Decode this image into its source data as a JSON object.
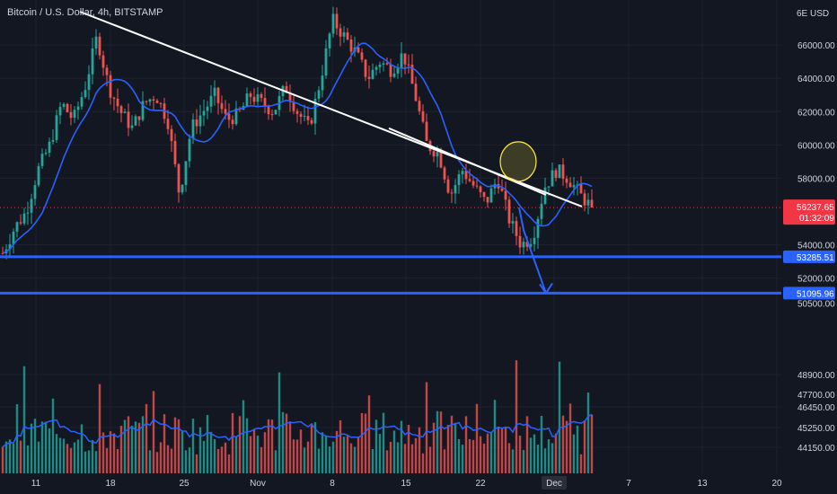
{
  "header": {
    "symbol": "Bitcoin",
    "separator": "/",
    "quote": "U.S. Dollar",
    "timeframe": "4h",
    "exchange": "BITSTAMP",
    "currency": "USD",
    "currency_prefix": "6E"
  },
  "colors": {
    "background": "#131722",
    "grid": "#1e222d",
    "up": "#26a69a",
    "down": "#ef5350",
    "ma": "#2962ff",
    "level": "#2962ff",
    "trend": "#ffffff",
    "highlight": "#ffeb3b",
    "price_tag": "#f23645"
  },
  "chart_data": {
    "type": "candlestick",
    "x_ticks": [
      "11",
      "18",
      "25",
      "Nov",
      "8",
      "15",
      "22",
      "Dec",
      "7",
      "13",
      "20"
    ],
    "price_ticks": [
      "66000.00",
      "64000.00",
      "62000.00",
      "60000.00",
      "58000.00",
      "54000.00",
      "52000.00",
      "50500.00"
    ],
    "volume_ticks": [
      "48900.00",
      "47700.00",
      "46450.00",
      "45250.00",
      "44150.00"
    ],
    "ylim_price": [
      50500,
      68000
    ],
    "price_path": [
      53500,
      55000,
      56000,
      58500,
      60000,
      62500,
      61500,
      63500,
      66500,
      63500,
      62000,
      61000,
      62500,
      63000,
      61500,
      57000,
      61000,
      62000,
      63000,
      61500,
      61800,
      63000,
      62500,
      62000,
      63500,
      62000,
      61000,
      64000,
      67500,
      66500,
      65500,
      64000,
      65000,
      64500,
      65500,
      63000,
      60000,
      59500,
      57000,
      58500,
      57500,
      56500,
      58000,
      55500,
      54000,
      54500,
      57500,
      58500,
      58000,
      57000,
      56237.65
    ],
    "current_price": "56237.65",
    "countdown": "01:32:09",
    "support_levels": [
      "53285.51",
      "51095.96"
    ],
    "level_values": [
      53285.51,
      51095.96
    ],
    "trendlines": [
      {
        "from": [
          8.6,
          68000
        ],
        "to": [
          64.5,
          56300
        ]
      },
      {
        "from": [
          43,
          61000
        ],
        "to": [
          60.5,
          57000
        ]
      }
    ],
    "projection": {
      "from": [
        57.5,
        56237.65
      ],
      "to": [
        60.5,
        51095.96
      ]
    }
  }
}
